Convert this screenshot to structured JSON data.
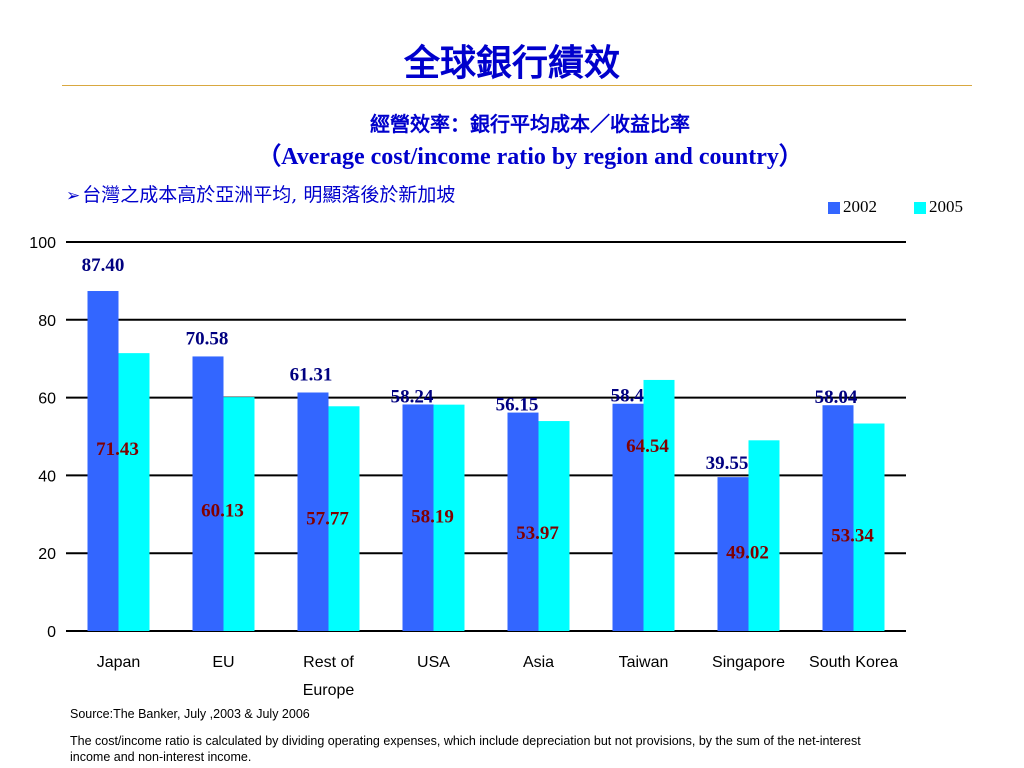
{
  "slide": {
    "title": "全球銀行績效",
    "subtitle_zh": "經營效率：銀行平均成本／收益比率",
    "subtitle_en": "（Average cost/income ratio by region and country）",
    "bullet": "台灣之成本高於亞洲平均, 明顯落後於新加坡",
    "source": "Source:The Banker, July ,2003 & July 2006",
    "note": "The cost/income ratio is calculated by dividing operating expenses, which include depreciation but not provisions, by the sum of the net-interest income and non-interest income."
  },
  "chart_data": {
    "type": "bar",
    "categories": [
      "Japan",
      "EU",
      "Rest of Europe",
      "USA",
      "Asia",
      "Taiwan",
      "Singapore",
      "South Korea"
    ],
    "series": [
      {
        "name": "2002",
        "color": "#3366ff",
        "label_color": "#000080",
        "values": [
          87.4,
          70.58,
          61.31,
          58.24,
          56.15,
          58.42,
          39.55,
          58.04
        ]
      },
      {
        "name": "2005",
        "color": "#00ffff",
        "label_color": "#800000",
        "values": [
          71.43,
          60.13,
          57.77,
          58.19,
          53.97,
          64.54,
          49.02,
          53.34
        ]
      }
    ],
    "value_labels": {
      "2002": [
        "87.40",
        "70.58",
        "61.31",
        "58.24",
        "56.15",
        "58.42",
        "39.55",
        "58.04"
      ],
      "2005": [
        "71.43",
        "60.13",
        "57.77",
        "58.19",
        "53.97",
        "64.54",
        "49.02",
        "53.34"
      ]
    },
    "yticks": [
      "0",
      "20",
      "40",
      "60",
      "80",
      "100"
    ],
    "ylim": [
      0,
      100
    ],
    "grid": true,
    "legend_position": "top-right"
  }
}
